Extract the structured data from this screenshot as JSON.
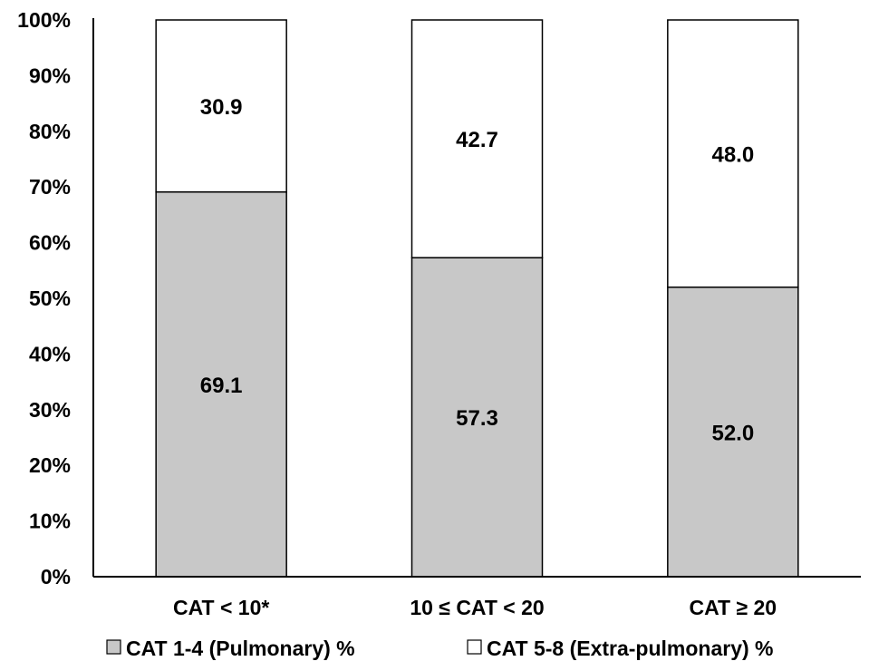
{
  "chart_data": {
    "type": "bar",
    "stacked": true,
    "categories": [
      "CAT < 10*",
      "10 ≤ CAT < 20",
      "CAT ≥ 20"
    ],
    "series": [
      {
        "name": "CAT 1-4 (Pulmonary) %",
        "values": [
          69.1,
          57.3,
          52.0
        ],
        "labels": [
          "69.1",
          "57.3",
          "52.0"
        ],
        "color": "#c8c8c8"
      },
      {
        "name": "CAT 5-8 (Extra-pulmonary) %",
        "values": [
          30.9,
          42.7,
          48.0
        ],
        "labels": [
          "30.9",
          "42.7",
          "48.0"
        ],
        "color": "#ffffff"
      }
    ],
    "yticks": [
      "0%",
      "10%",
      "20%",
      "30%",
      "40%",
      "50%",
      "60%",
      "70%",
      "80%",
      "90%",
      "100%"
    ],
    "ylim": [
      0,
      100
    ],
    "grid": false,
    "legend_position": "bottom",
    "title": "",
    "xlabel": "",
    "ylabel": ""
  }
}
